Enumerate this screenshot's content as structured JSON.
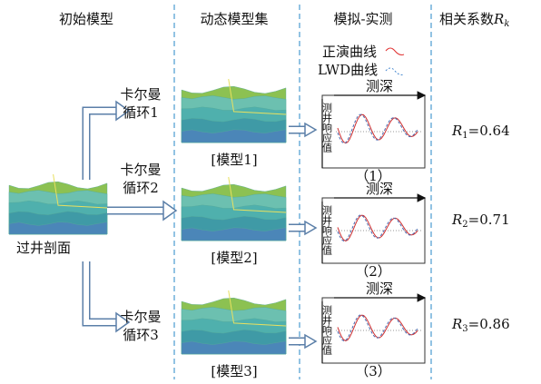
{
  "headers": {
    "initial": "初始模型",
    "dynamic": "动态模型集",
    "sim": "模拟-实测",
    "corr": {
      "text": "相关系数",
      "var": "R",
      "sub": "k"
    }
  },
  "initial_label": "过井剖面",
  "legend": {
    "forward": "正演曲线",
    "lwd": "LWD曲线"
  },
  "branches": [
    {
      "kalman": [
        "卡尔曼",
        "循环1"
      ],
      "model": "[模型1]",
      "x_label": "测深",
      "y_label": "测井响应值",
      "plot": "（1）",
      "result": {
        "var": "R",
        "sub": "1",
        "value": "=0.64"
      }
    },
    {
      "kalman": [
        "卡尔曼",
        "循环2"
      ],
      "model": "[模型2]",
      "x_label": "测深",
      "y_label": "测井响应值",
      "plot": "（2）",
      "result": {
        "var": "R",
        "sub": "2",
        "value": "=0.71"
      }
    },
    {
      "kalman": [
        "卡尔曼",
        "循环3"
      ],
      "model": "[模型3]",
      "x_label": "测深",
      "y_label": "测井响应值",
      "plot": "（3）",
      "result": {
        "var": "R",
        "sub": "3",
        "value": "=0.86"
      }
    }
  ]
}
